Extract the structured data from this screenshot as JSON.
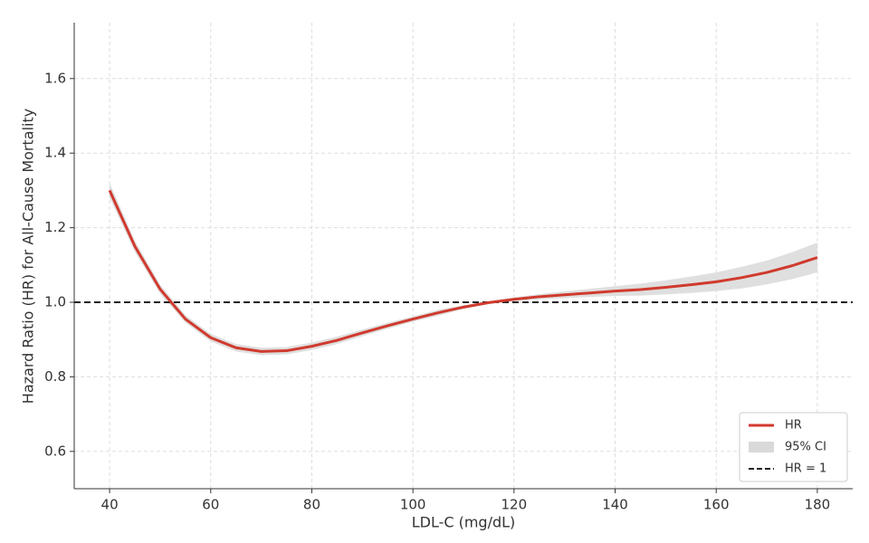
{
  "chart_data": {
    "type": "line",
    "xlabel": "LDL-C (mg/dL)",
    "ylabel": "Hazard Ratio (HR) for All-Cause Mortality",
    "x": [
      40,
      45,
      50,
      55,
      60,
      65,
      70,
      75,
      80,
      85,
      90,
      95,
      100,
      105,
      110,
      115,
      120,
      125,
      130,
      135,
      140,
      145,
      150,
      155,
      160,
      165,
      170,
      175,
      180
    ],
    "series": [
      {
        "name": "HR",
        "color": "#d03a2e",
        "values": [
          1.3,
          1.15,
          1.035,
          0.955,
          0.905,
          0.878,
          0.868,
          0.87,
          0.882,
          0.898,
          0.918,
          0.937,
          0.955,
          0.972,
          0.987,
          0.999,
          1.008,
          1.015,
          1.02,
          1.025,
          1.03,
          1.034,
          1.04,
          1.047,
          1.055,
          1.066,
          1.08,
          1.098,
          1.12
        ]
      }
    ],
    "band": {
      "name": "95% CI",
      "color": "#d9d9d9",
      "lower": [
        1.28,
        1.135,
        1.023,
        0.945,
        0.895,
        0.868,
        0.858,
        0.86,
        0.872,
        0.888,
        0.909,
        0.929,
        0.948,
        0.964,
        0.982,
        0.995,
        1.003,
        1.008,
        1.011,
        1.014,
        1.017,
        1.018,
        1.021,
        1.025,
        1.03,
        1.037,
        1.048,
        1.062,
        1.08
      ],
      "upper": [
        1.32,
        1.165,
        1.047,
        0.965,
        0.915,
        0.888,
        0.878,
        0.88,
        0.892,
        0.908,
        0.927,
        0.945,
        0.962,
        0.98,
        0.992,
        1.003,
        1.013,
        1.022,
        1.029,
        1.036,
        1.043,
        1.05,
        1.059,
        1.069,
        1.08,
        1.095,
        1.112,
        1.134,
        1.16
      ]
    },
    "reference_line": {
      "name": "HR = 1",
      "value": 1,
      "color": "#222222"
    },
    "xlim": [
      33,
      187
    ],
    "ylim": [
      0.5,
      1.75
    ],
    "xticks": [
      40,
      60,
      80,
      100,
      120,
      140,
      160,
      180
    ],
    "yticks": [
      0.6,
      0.8,
      {
        "value": 1,
        "label": "1.0"
      },
      1.2,
      1.4,
      1.6
    ],
    "grid": true,
    "legend": "lower right"
  }
}
